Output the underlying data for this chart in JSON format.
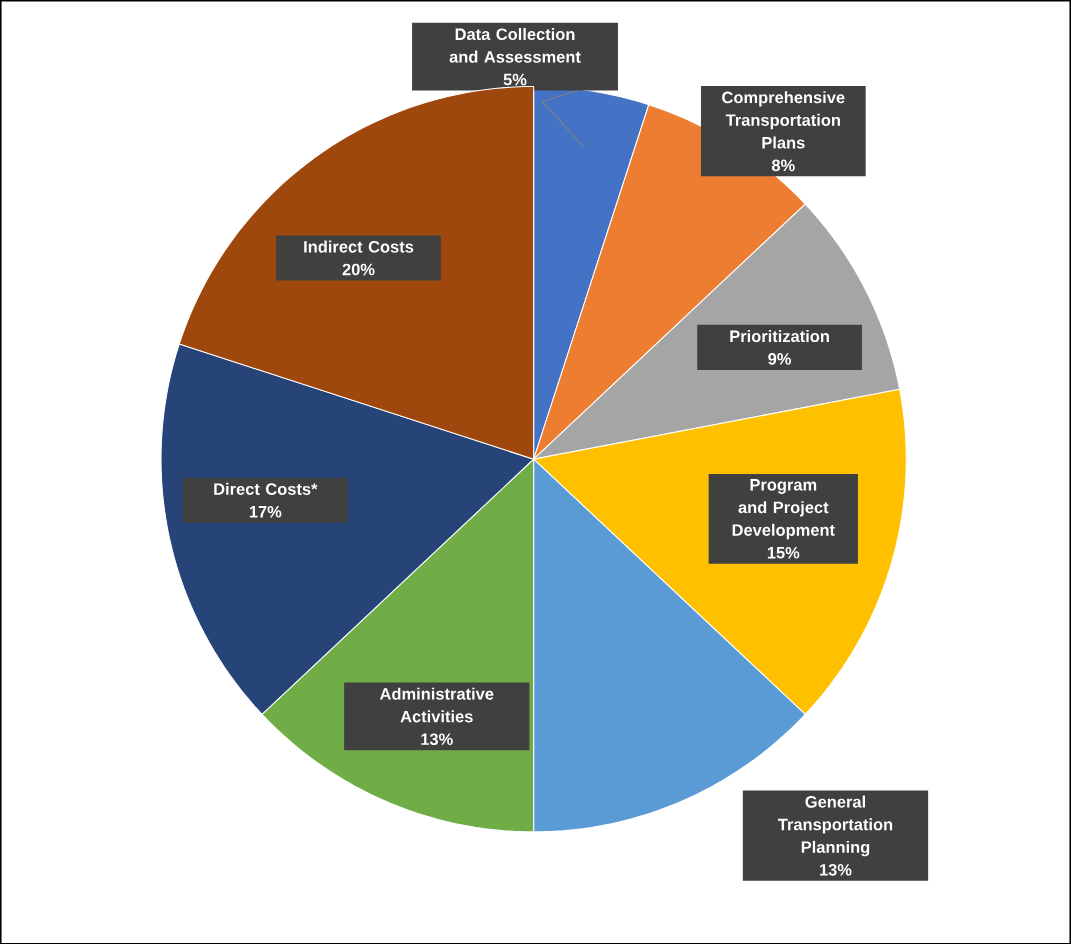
{
  "chart_data": {
    "type": "pie",
    "categories": [
      "Data Collection and Assessment",
      "Comprehensive Transportation Plans",
      "Prioritization",
      "Program and Project Development",
      "General Transportation Planning",
      "Administrative Activities",
      "Direct Costs*",
      "Indirect Costs"
    ],
    "values": [
      5,
      8,
      9,
      15,
      13,
      13,
      17,
      20
    ],
    "colors": [
      "#4472c4",
      "#ed7d31",
      "#a5a5a5",
      "#ffc000",
      "#5b9bd5",
      "#70ad47",
      "#264478",
      "#9e480e"
    ],
    "value_labels": [
      "5%",
      "8%",
      "9%",
      "15%",
      "13%",
      "13%",
      "17%",
      "20%"
    ]
  }
}
